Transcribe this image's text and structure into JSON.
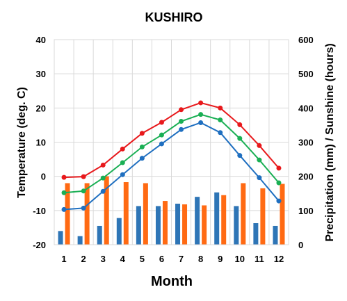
{
  "chart_data": {
    "type": "bar+line",
    "title": "KUSHIRO",
    "xlabel": "Month",
    "ylabel_left": "Temperature (deg. C)",
    "ylabel_right": "Precipitation (mm) / Sunshine (hours)",
    "x": [
      1,
      2,
      3,
      4,
      5,
      6,
      7,
      8,
      9,
      10,
      11,
      12
    ],
    "ylim_left": [
      -20,
      40
    ],
    "ylim_right": [
      0,
      600
    ],
    "yticks_left": [
      -20,
      -10,
      0,
      10,
      20,
      30,
      40
    ],
    "yticks_right": [
      0,
      100,
      200,
      300,
      400,
      500,
      600
    ],
    "grid": true,
    "lines": [
      {
        "axis": "left",
        "color": "#e8191c",
        "values": [
          -0.3,
          -0.1,
          3.3,
          8.0,
          12.6,
          15.8,
          19.5,
          21.5,
          20.0,
          15.1,
          9.0,
          2.4
        ]
      },
      {
        "axis": "left",
        "color": "#1aaf54",
        "values": [
          -4.8,
          -4.3,
          -0.5,
          4.0,
          8.6,
          12.1,
          16.1,
          18.1,
          16.5,
          11.1,
          4.8,
          -1.9
        ]
      },
      {
        "axis": "left",
        "color": "#1f6fc0",
        "values": [
          -9.7,
          -9.3,
          -4.4,
          0.5,
          5.3,
          9.5,
          13.7,
          15.7,
          12.8,
          6.1,
          -0.4,
          -7.2
        ]
      }
    ],
    "bars": [
      {
        "axis": "right",
        "color": "#2e75b6",
        "values": [
          40,
          25,
          55,
          78,
          113,
          113,
          120,
          140,
          153,
          113,
          63,
          55
        ]
      },
      {
        "axis": "right",
        "color": "#ff6a13",
        "values": [
          180,
          180,
          200,
          183,
          180,
          128,
          118,
          115,
          145,
          180,
          165,
          178
        ]
      }
    ],
    "colors": {
      "grid": "#d9d9d9",
      "frame": "#d9d9d9"
    }
  }
}
